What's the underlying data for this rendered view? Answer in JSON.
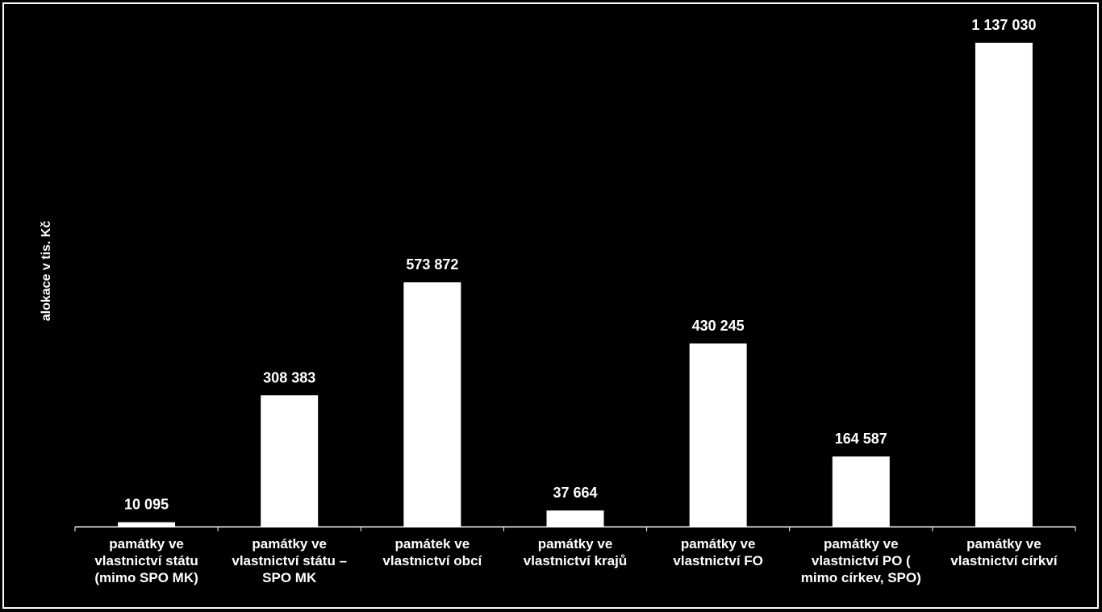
{
  "chart_data": {
    "type": "bar",
    "y_label": "alokace v tis. Kč",
    "categories": [
      "památky ve vlastnictví státu (mimo SPO MK)",
      "památky ve vlastnictví státu – SPO MK",
      "památek ve vlastnictví obcí",
      "památky ve vlastnictví krajů",
      "památky ve vlastnictví FO",
      "památky ve vlastnictví PO ( mimo církev, SPO)",
      "památky ve vlastnictví církví"
    ],
    "values": [
      10095,
      308383,
      573872,
      37664,
      430245,
      164587,
      1137030
    ],
    "value_labels": [
      "10 095",
      "308 383",
      "573 872",
      "37 664",
      "430 245",
      "164 587",
      "1 137 030"
    ],
    "color": "#ffffff"
  }
}
